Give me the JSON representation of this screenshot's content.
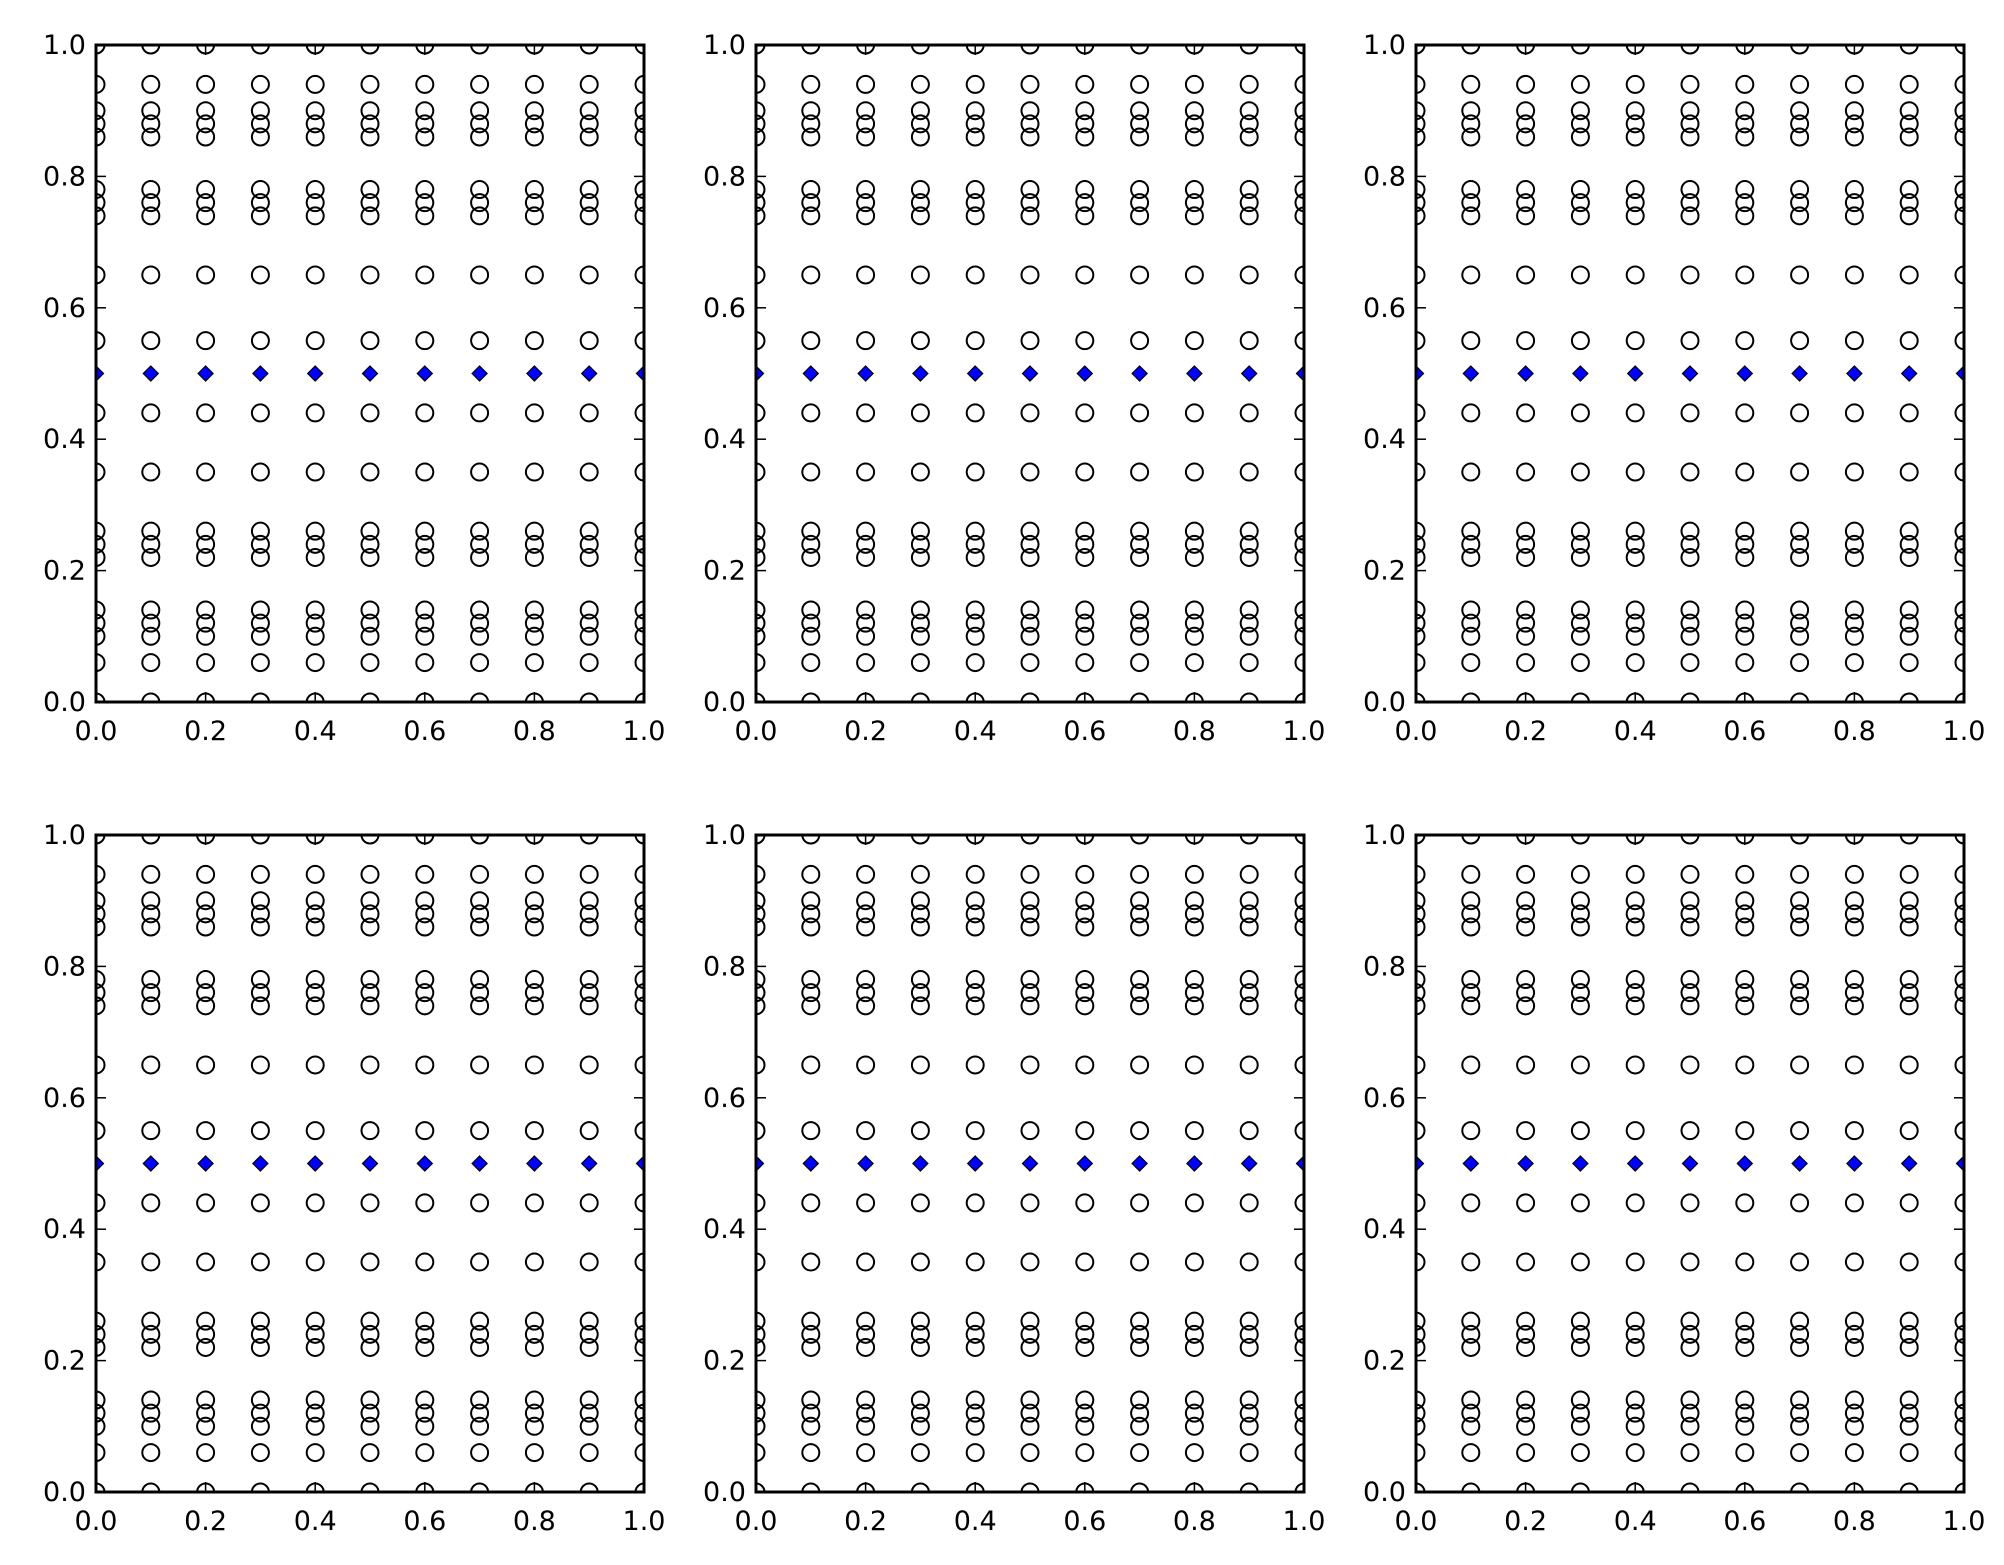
{
  "figure": {
    "background": "#ffffff",
    "layout": [
      2,
      3
    ]
  },
  "colors": {
    "frame": "#000000",
    "circle_stroke": "#000000",
    "diamond_fill": "#0000ff",
    "diamond_stroke": "#000000"
  },
  "chart_data": [
    {
      "type": "scatter",
      "panel": "top-left",
      "xlim": [
        0,
        1
      ],
      "ylim": [
        0,
        1
      ],
      "xticks": [
        "0.0",
        "0.2",
        "0.4",
        "0.6",
        "0.8",
        "1.0"
      ],
      "yticks": [
        "0.0",
        "0.2",
        "0.4",
        "0.6",
        "0.8",
        "1.0"
      ],
      "x": [
        0,
        0.1,
        0.2,
        0.3,
        0.4,
        0.5,
        0.6,
        0.7,
        0.8,
        0.9,
        1.0
      ],
      "highlight_y": 0.5,
      "grid": false,
      "circle_rows": [
        0.0,
        0.06,
        0.1,
        0.12,
        0.14,
        0.22,
        0.24,
        0.26,
        0.35,
        0.44,
        0.55,
        0.65,
        0.74,
        0.76,
        0.78,
        0.86,
        0.88,
        0.9,
        0.94,
        1.0
      ]
    },
    {
      "type": "scatter",
      "panel": "top-middle",
      "xlim": [
        0,
        1
      ],
      "ylim": [
        0,
        1
      ],
      "xticks": [
        "0.0",
        "0.2",
        "0.4",
        "0.6",
        "0.8",
        "1.0"
      ],
      "yticks": [
        "0.0",
        "0.2",
        "0.4",
        "0.6",
        "0.8",
        "1.0"
      ],
      "x": [
        0,
        0.1,
        0.2,
        0.3,
        0.4,
        0.5,
        0.6,
        0.7,
        0.8,
        0.9,
        1.0
      ],
      "highlight_y": 0.5,
      "grid": false,
      "circle_rows": [
        0.0,
        0.06,
        0.1,
        0.12,
        0.14,
        0.22,
        0.24,
        0.26,
        0.35,
        0.44,
        0.55,
        0.65,
        0.74,
        0.76,
        0.78,
        0.86,
        0.88,
        0.9,
        0.94,
        1.0
      ]
    },
    {
      "type": "scatter",
      "panel": "top-right",
      "xlim": [
        0,
        1
      ],
      "ylim": [
        0,
        1
      ],
      "xticks": [
        "0.0",
        "0.2",
        "0.4",
        "0.6",
        "0.8",
        "1.0"
      ],
      "yticks": [
        "0.0",
        "0.2",
        "0.4",
        "0.6",
        "0.8",
        "1.0"
      ],
      "x": [
        0,
        0.1,
        0.2,
        0.3,
        0.4,
        0.5,
        0.6,
        0.7,
        0.8,
        0.9,
        1.0
      ],
      "highlight_y": 0.5,
      "grid": false,
      "circle_rows": [
        0.0,
        0.06,
        0.1,
        0.12,
        0.14,
        0.22,
        0.24,
        0.26,
        0.35,
        0.44,
        0.55,
        0.65,
        0.74,
        0.76,
        0.78,
        0.86,
        0.88,
        0.9,
        0.94,
        1.0
      ]
    },
    {
      "type": "scatter",
      "panel": "bottom-left",
      "xlim": [
        0,
        1
      ],
      "ylim": [
        0,
        1
      ],
      "xticks": [
        "0.0",
        "0.2",
        "0.4",
        "0.6",
        "0.8",
        "1.0"
      ],
      "yticks": [
        "0.0",
        "0.2",
        "0.4",
        "0.6",
        "0.8",
        "1.0"
      ],
      "x": [
        0,
        0.1,
        0.2,
        0.3,
        0.4,
        0.5,
        0.6,
        0.7,
        0.8,
        0.9,
        1.0
      ],
      "highlight_y": 0.5,
      "grid": false,
      "circle_rows": [
        0.0,
        0.06,
        0.1,
        0.12,
        0.14,
        0.22,
        0.24,
        0.26,
        0.35,
        0.44,
        0.55,
        0.65,
        0.74,
        0.76,
        0.78,
        0.86,
        0.88,
        0.9,
        0.94,
        1.0
      ]
    },
    {
      "type": "scatter",
      "panel": "bottom-middle",
      "xlim": [
        0,
        1
      ],
      "ylim": [
        0,
        1
      ],
      "xticks": [
        "0.0",
        "0.2",
        "0.4",
        "0.6",
        "0.8",
        "1.0"
      ],
      "yticks": [
        "0.0",
        "0.2",
        "0.4",
        "0.6",
        "0.8",
        "1.0"
      ],
      "x": [
        0,
        0.1,
        0.2,
        0.3,
        0.4,
        0.5,
        0.6,
        0.7,
        0.8,
        0.9,
        1.0
      ],
      "highlight_y": 0.5,
      "grid": false,
      "circle_rows": [
        0.0,
        0.06,
        0.1,
        0.12,
        0.14,
        0.22,
        0.24,
        0.26,
        0.35,
        0.44,
        0.55,
        0.65,
        0.74,
        0.76,
        0.78,
        0.86,
        0.88,
        0.9,
        0.94,
        1.0
      ]
    },
    {
      "type": "scatter",
      "panel": "bottom-right",
      "xlim": [
        0,
        1
      ],
      "ylim": [
        0,
        1
      ],
      "xticks": [
        "0.0",
        "0.2",
        "0.4",
        "0.6",
        "0.8",
        "1.0"
      ],
      "yticks": [
        "0.0",
        "0.2",
        "0.4",
        "0.6",
        "0.8",
        "1.0"
      ],
      "x": [
        0,
        0.1,
        0.2,
        0.3,
        0.4,
        0.5,
        0.6,
        0.7,
        0.8,
        0.9,
        1.0
      ],
      "highlight_y": 0.5,
      "grid": false,
      "circle_rows": [
        0.0,
        0.06,
        0.1,
        0.12,
        0.14,
        0.22,
        0.24,
        0.26,
        0.35,
        0.44,
        0.55,
        0.65,
        0.74,
        0.76,
        0.78,
        0.86,
        0.88,
        0.9,
        0.94,
        1.0
      ]
    }
  ]
}
